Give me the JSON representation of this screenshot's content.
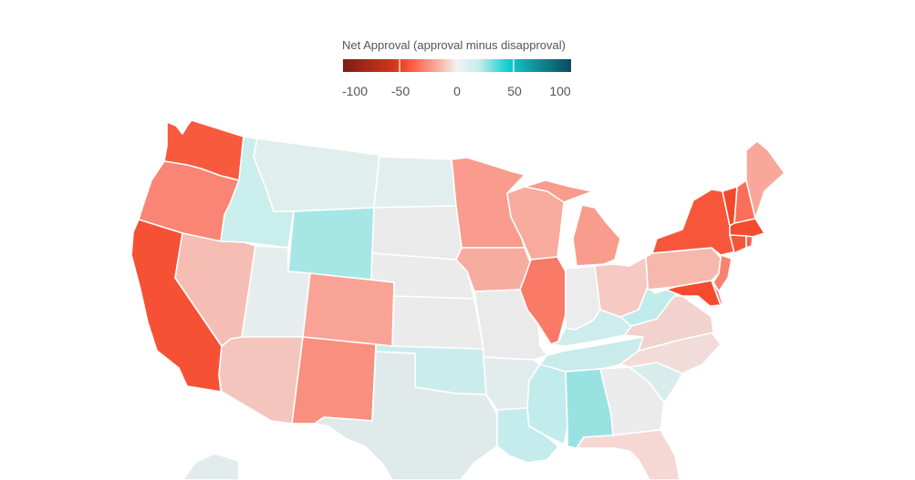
{
  "legend": {
    "title": "Net Approval (approval minus disapproval)",
    "ticks": [
      "-100",
      "-50",
      "0",
      "50",
      "100"
    ],
    "colors": [
      "#7d1d17",
      "#d23619",
      "#ff5a3c",
      "#f7b8ad",
      "#f3f3f3",
      "#c2ecec",
      "#12cfd0",
      "#0f8f99",
      "#0b4a5f"
    ]
  },
  "states": [
    {
      "id": "WA",
      "color": "#f85a3e"
    },
    {
      "id": "OR",
      "color": "#fa8574"
    },
    {
      "id": "CA",
      "color": "#f65035"
    },
    {
      "id": "ID",
      "color": "#c9eeec"
    },
    {
      "id": "NV",
      "color": "#f5bdb3"
    },
    {
      "id": "MT",
      "color": "#e1eeee"
    },
    {
      "id": "WY",
      "color": "#a6e6e5"
    },
    {
      "id": "UT",
      "color": "#e7eded"
    },
    {
      "id": "AZ",
      "color": "#f3c5bd"
    },
    {
      "id": "CO",
      "color": "#f8a395"
    },
    {
      "id": "NM",
      "color": "#f98f7e"
    },
    {
      "id": "ND",
      "color": "#e2eeed"
    },
    {
      "id": "SD",
      "color": "#eaeaea"
    },
    {
      "id": "NE",
      "color": "#ebebeb"
    },
    {
      "id": "KS",
      "color": "#ebebeb"
    },
    {
      "id": "OK",
      "color": "#cbecec"
    },
    {
      "id": "TX",
      "color": "#e1eaea"
    },
    {
      "id": "MN",
      "color": "#f99c8d"
    },
    {
      "id": "IA",
      "color": "#f7aca0"
    },
    {
      "id": "MO",
      "color": "#eaeaea"
    },
    {
      "id": "AR",
      "color": "#e3ecec"
    },
    {
      "id": "LA",
      "color": "#c4ecec"
    },
    {
      "id": "WI",
      "color": "#f7aa9d"
    },
    {
      "id": "IL",
      "color": "#f97a67"
    },
    {
      "id": "MI",
      "color": "#f99c8e"
    },
    {
      "id": "IN",
      "color": "#ececec"
    },
    {
      "id": "OH",
      "color": "#f6c9c2"
    },
    {
      "id": "KY",
      "color": "#cdeceb"
    },
    {
      "id": "TN",
      "color": "#c9ebea"
    },
    {
      "id": "MS",
      "color": "#c2ecec"
    },
    {
      "id": "AL",
      "color": "#98e3e2"
    },
    {
      "id": "GA",
      "color": "#ebebeb"
    },
    {
      "id": "FL",
      "color": "#f5d8d3"
    },
    {
      "id": "SC",
      "color": "#d9ecec"
    },
    {
      "id": "NC",
      "color": "#f2dcd9"
    },
    {
      "id": "VA",
      "color": "#f2d2cc"
    },
    {
      "id": "WV",
      "color": "#bfeceb"
    },
    {
      "id": "PA",
      "color": "#f6b8ad"
    },
    {
      "id": "NY",
      "color": "#f7563b"
    },
    {
      "id": "NJ",
      "color": "#f9826f"
    },
    {
      "id": "MD",
      "color": "#f64a2e"
    },
    {
      "id": "DE",
      "color": "#f98570"
    },
    {
      "id": "VT",
      "color": "#f4472b"
    },
    {
      "id": "NH",
      "color": "#f96f58"
    },
    {
      "id": "ME",
      "color": "#f8a79a"
    },
    {
      "id": "MA",
      "color": "#f44a2d"
    },
    {
      "id": "CT",
      "color": "#f5563a"
    },
    {
      "id": "RI",
      "color": "#f7624a"
    }
  ]
}
